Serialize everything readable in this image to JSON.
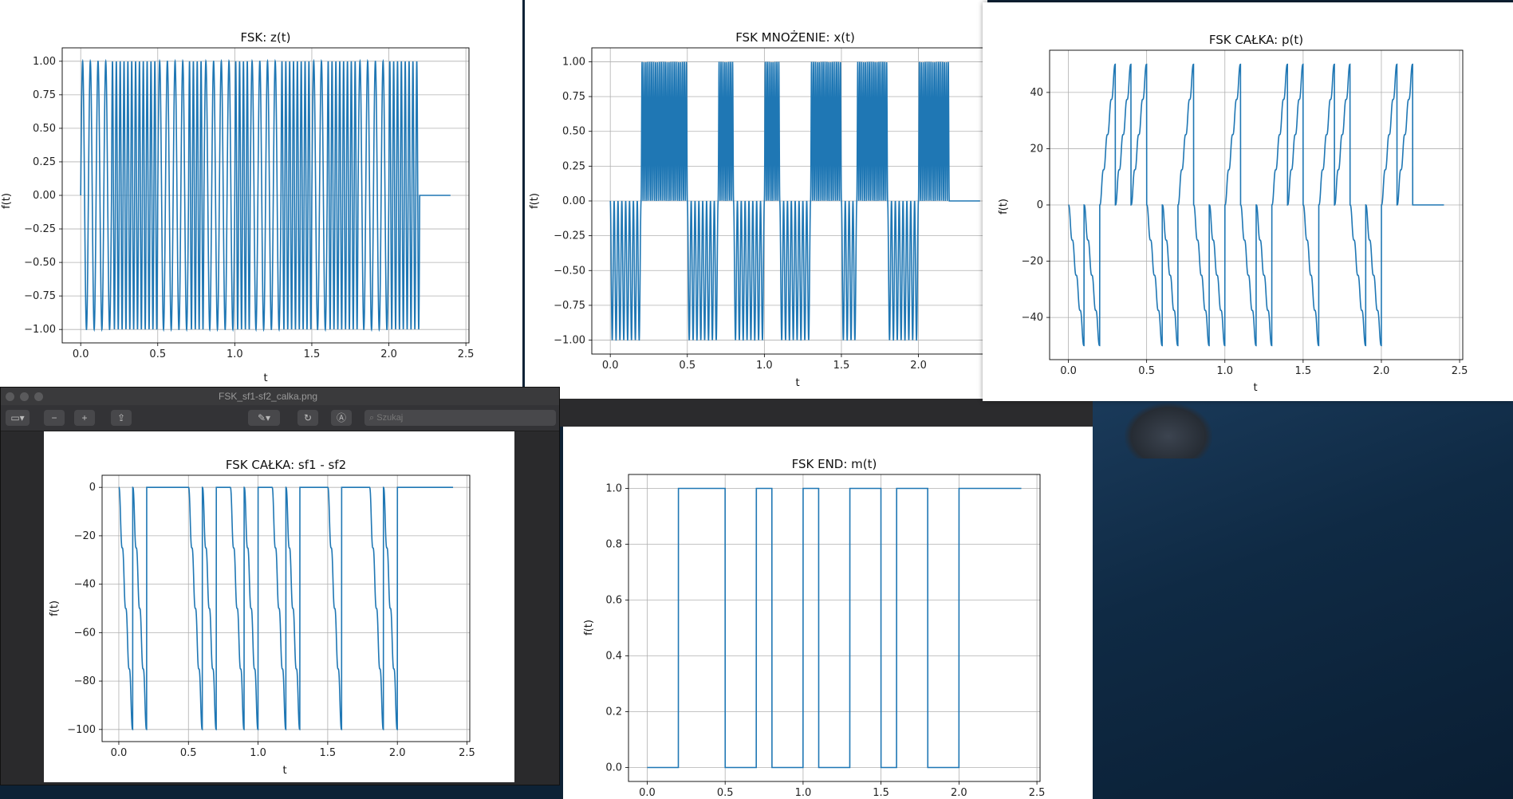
{
  "viewer": {
    "filename": "FSK_sf1-sf2_calka.png",
    "search_placeholder": "Szukaj"
  },
  "colors": {
    "line": "#1f77b4",
    "grid": "#b0b0b0",
    "desktop": "#0f2a44"
  },
  "charts": [
    {
      "id": "z",
      "type": "line",
      "title": "FSK: z(t)",
      "xlabel": "t",
      "ylabel": "f(t)",
      "xlim": [
        -0.12,
        2.52
      ],
      "ylim": [
        -1.1,
        1.1
      ],
      "xticks": [
        0.0,
        0.5,
        1.0,
        1.5,
        2.0,
        2.5
      ],
      "xticklabels": [
        "0.0",
        "0.5",
        "1.0",
        "1.5",
        "2.0",
        "2.5"
      ],
      "yticks": [
        -1.0,
        -0.75,
        -0.5,
        -0.25,
        0.0,
        0.25,
        0.5,
        0.75,
        1.0
      ],
      "yticklabels": [
        "−1.00",
        "−0.75",
        "−0.50",
        "−0.25",
        "0.00",
        "0.25",
        "0.50",
        "0.75",
        "1.00"
      ],
      "bits": [
        0,
        0,
        1,
        1,
        1,
        0,
        0,
        1,
        0,
        0,
        1,
        0,
        0,
        1,
        1,
        0,
        1,
        1,
        0,
        0,
        1,
        1
      ],
      "bit_period": 0.1,
      "f0": 20,
      "f1": 40,
      "end_time": 2.4
    },
    {
      "id": "x",
      "type": "line",
      "title": "FSK MNOŻENIE: x(t)",
      "xlabel": "t",
      "ylabel": "f(t)",
      "xlim": [
        -0.12,
        2.52
      ],
      "ylim": [
        -1.1,
        1.1
      ],
      "xticks": [
        0.0,
        0.5,
        1.0,
        1.5,
        2.0
      ],
      "xticklabels": [
        "0.0",
        "0.5",
        "1.0",
        "1.5",
        "2.0"
      ],
      "yticks": [
        -1.0,
        -0.75,
        -0.5,
        -0.25,
        0.0,
        0.25,
        0.5,
        0.75,
        1.0
      ],
      "yticklabels": [
        "−1.00",
        "−0.75",
        "−0.50",
        "−0.25",
        "0.00",
        "0.25",
        "0.50",
        "0.75",
        "1.00"
      ],
      "bits": [
        0,
        0,
        1,
        1,
        1,
        0,
        0,
        1,
        0,
        0,
        1,
        0,
        0,
        1,
        1,
        0,
        1,
        1,
        0,
        0,
        1,
        1
      ],
      "bit_period": 0.1,
      "f0": 20,
      "f1": 40,
      "end_time": 2.4
    },
    {
      "id": "p",
      "type": "line",
      "title": "FSK CAŁKA: p(t)",
      "xlabel": "t",
      "ylabel": "f(t)",
      "xlim": [
        -0.12,
        2.52
      ],
      "ylim": [
        -55,
        55
      ],
      "xticks": [
        0.0,
        0.5,
        1.0,
        1.5,
        2.0,
        2.5
      ],
      "xticklabels": [
        "0.0",
        "0.5",
        "1.0",
        "1.5",
        "2.0",
        "2.5"
      ],
      "yticks": [
        -40,
        -20,
        0,
        20,
        40
      ],
      "yticklabels": [
        "−40",
        "−20",
        "0",
        "20",
        "40"
      ],
      "bits": [
        0,
        0,
        1,
        1,
        1,
        0,
        0,
        1,
        0,
        0,
        1,
        0,
        0,
        1,
        1,
        0,
        1,
        1,
        0,
        0,
        1,
        1
      ],
      "bit_period": 0.1,
      "peak": 50,
      "end_time": 2.4
    },
    {
      "id": "sf",
      "type": "line",
      "title": "FSK CAŁKA: sf1 - sf2",
      "xlabel": "t",
      "ylabel": "f(t)",
      "xlim": [
        -0.12,
        2.52
      ],
      "ylim": [
        -105,
        5
      ],
      "xticks": [
        0.0,
        0.5,
        1.0,
        1.5,
        2.0,
        2.5
      ],
      "xticklabels": [
        "0.0",
        "0.5",
        "1.0",
        "1.5",
        "2.0",
        "2.5"
      ],
      "yticks": [
        -100,
        -80,
        -60,
        -40,
        -20,
        0
      ],
      "yticklabels": [
        "−100",
        "−80",
        "−60",
        "−40",
        "−20",
        "0"
      ],
      "bits": [
        0,
        0,
        1,
        1,
        1,
        0,
        0,
        1,
        0,
        0,
        1,
        0,
        0,
        1,
        1,
        0,
        1,
        1,
        0,
        0,
        1,
        1
      ],
      "bit_period": 0.1,
      "peak": 100,
      "end_time": 2.4
    },
    {
      "id": "m",
      "type": "line",
      "title": "FSK END: m(t)",
      "xlabel": "",
      "ylabel": "f(t)",
      "xlim": [
        -0.12,
        2.52
      ],
      "ylim": [
        -0.05,
        1.05
      ],
      "xticks": [
        0.0,
        0.5,
        1.0,
        1.5,
        2.0,
        2.5
      ],
      "xticklabels": [
        "0.0",
        "0.5",
        "1.0",
        "1.5",
        "2.0",
        "2.5"
      ],
      "yticks": [
        0.0,
        0.2,
        0.4,
        0.6,
        0.8,
        1.0
      ],
      "yticklabels": [
        "0.0",
        "0.2",
        "0.4",
        "0.6",
        "0.8",
        "1.0"
      ],
      "bits": [
        0,
        0,
        1,
        1,
        1,
        0,
        0,
        1,
        0,
        0,
        1,
        0,
        0,
        1,
        1,
        0,
        1,
        1,
        0,
        0,
        1,
        1
      ],
      "bit_period": 0.1,
      "end_time": 2.4
    }
  ]
}
